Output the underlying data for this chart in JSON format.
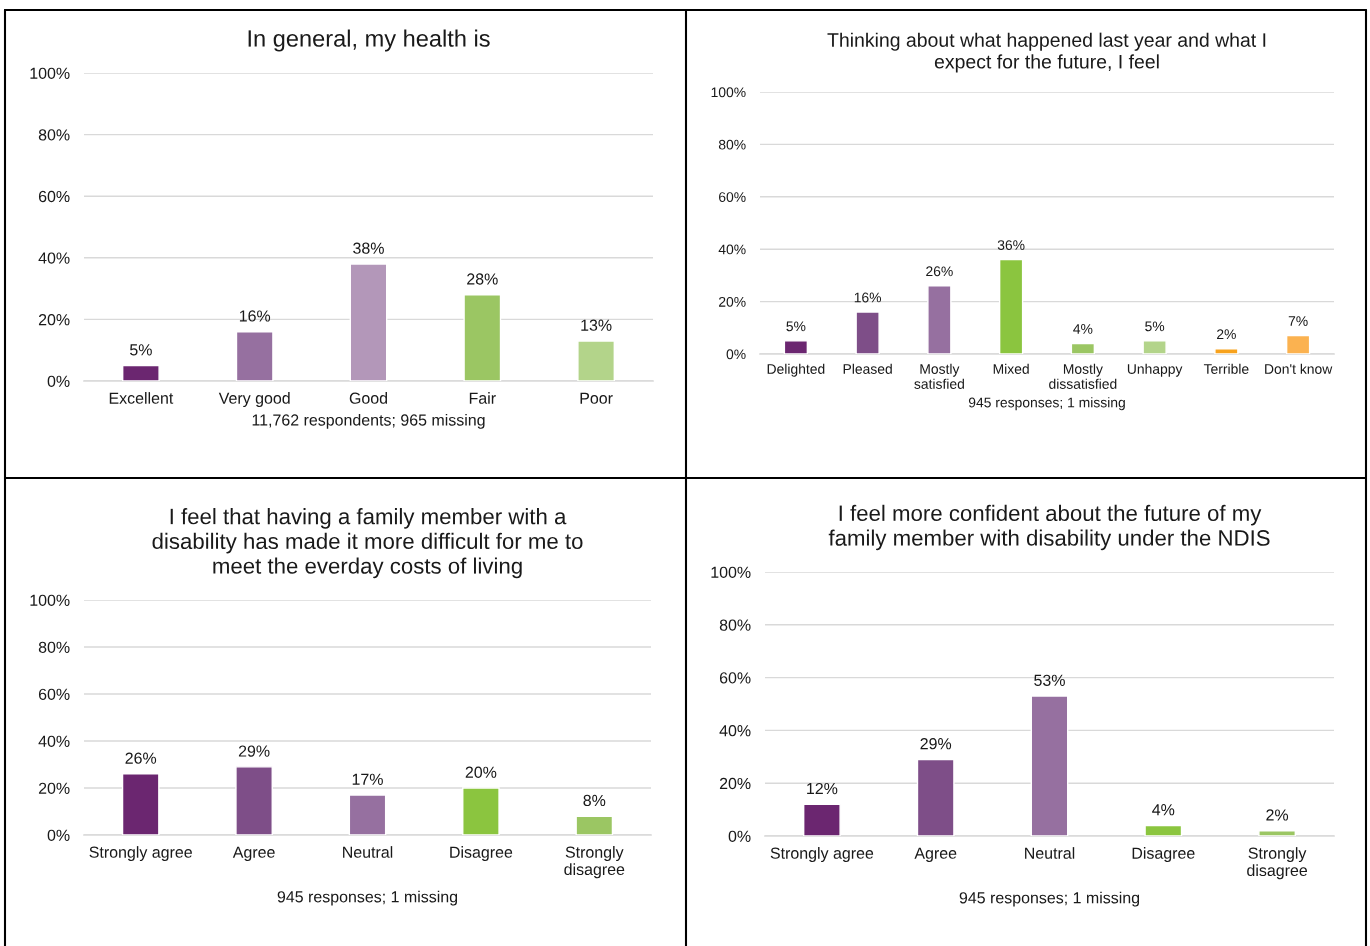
{
  "chart_data": [
    {
      "type": "bar",
      "title": "In general, my health is",
      "xlabel": "11,762 respondents; 965 missing",
      "categories": [
        "Excellent",
        "Very good",
        "Good",
        "Fair",
        "Poor"
      ],
      "values": [
        5,
        16,
        38,
        28,
        13
      ],
      "value_labels": [
        "5%",
        "16%",
        "38%",
        "28%",
        "13%"
      ],
      "colors": [
        "#6b2670",
        "#9670a0",
        "#b397b9",
        "#9bc663",
        "#b3d48a"
      ],
      "ylim": [
        0,
        100
      ],
      "yticks": [
        {
          "value": 0,
          "label": "0%"
        },
        {
          "value": 20,
          "label": "20%"
        },
        {
          "value": 40,
          "label": "40%"
        },
        {
          "value": 60,
          "label": "60%"
        },
        {
          "value": 80,
          "label": "80%"
        },
        {
          "value": 100,
          "label": "100%"
        }
      ],
      "grid": "y"
    },
    {
      "type": "bar",
      "title": "Thinking about what happened last year and what I\nexpect for the future, I feel",
      "xlabel": "945 responses; 1 missing",
      "categories": [
        "Delighted",
        "Pleased",
        "Mostly\nsatisfied",
        "Mixed",
        "Mostly\ndissatisfied",
        "Unhappy",
        "Terrible",
        "Don't know"
      ],
      "values": [
        5,
        16,
        26,
        36,
        4,
        5,
        2,
        7
      ],
      "value_labels": [
        "5%",
        "16%",
        "26%",
        "36%",
        "4%",
        "5%",
        "2%",
        "7%"
      ],
      "colors": [
        "#6b2670",
        "#7e4e88",
        "#9670a0",
        "#8bc53f",
        "#9bc663",
        "#b3d48a",
        "#f7a21d",
        "#fbb250"
      ],
      "ylim": [
        0,
        100
      ],
      "yticks": [
        {
          "value": 0,
          "label": "0%"
        },
        {
          "value": 20,
          "label": "20%"
        },
        {
          "value": 40,
          "label": "40%"
        },
        {
          "value": 60,
          "label": "60%"
        },
        {
          "value": 80,
          "label": "80%"
        },
        {
          "value": 100,
          "label": "100%"
        }
      ],
      "grid": "y"
    },
    {
      "type": "bar",
      "title": "I feel that having a family member with a\ndisability has made it more difficult for me to\nmeet the everday costs of living",
      "xlabel": "945 responses; 1 missing",
      "categories": [
        "Strongly agree",
        "Agree",
        "Neutral",
        "Disagree",
        "Strongly\ndisagree"
      ],
      "values": [
        26,
        29,
        17,
        20,
        8
      ],
      "value_labels": [
        "26%",
        "29%",
        "17%",
        "20%",
        "8%"
      ],
      "colors": [
        "#6b2670",
        "#7e4e88",
        "#9670a0",
        "#8bc53f",
        "#9bc663"
      ],
      "ylim": [
        0,
        100
      ],
      "yticks": [
        {
          "value": 0,
          "label": "0%"
        },
        {
          "value": 20,
          "label": "20%"
        },
        {
          "value": 40,
          "label": "40%"
        },
        {
          "value": 60,
          "label": "60%"
        },
        {
          "value": 80,
          "label": "80%"
        },
        {
          "value": 100,
          "label": "100%"
        }
      ],
      "grid": "y"
    },
    {
      "type": "bar",
      "title": "I feel more confident about the future of my\nfamily member with disability under the NDIS",
      "xlabel": "945 responses; 1 missing",
      "categories": [
        "Strongly agree",
        "Agree",
        "Neutral",
        "Disagree",
        "Strongly\ndisagree"
      ],
      "values": [
        12,
        29,
        53,
        4,
        2
      ],
      "value_labels": [
        "12%",
        "29%",
        "53%",
        "4%",
        "2%"
      ],
      "colors": [
        "#6b2670",
        "#7e4e88",
        "#9670a0",
        "#8bc53f",
        "#9bc663"
      ],
      "ylim": [
        0,
        100
      ],
      "yticks": [
        {
          "value": 0,
          "label": "0%"
        },
        {
          "value": 20,
          "label": "20%"
        },
        {
          "value": 40,
          "label": "40%"
        },
        {
          "value": 60,
          "label": "60%"
        },
        {
          "value": 80,
          "label": "80%"
        },
        {
          "value": 100,
          "label": "100%"
        }
      ],
      "grid": "y"
    }
  ]
}
